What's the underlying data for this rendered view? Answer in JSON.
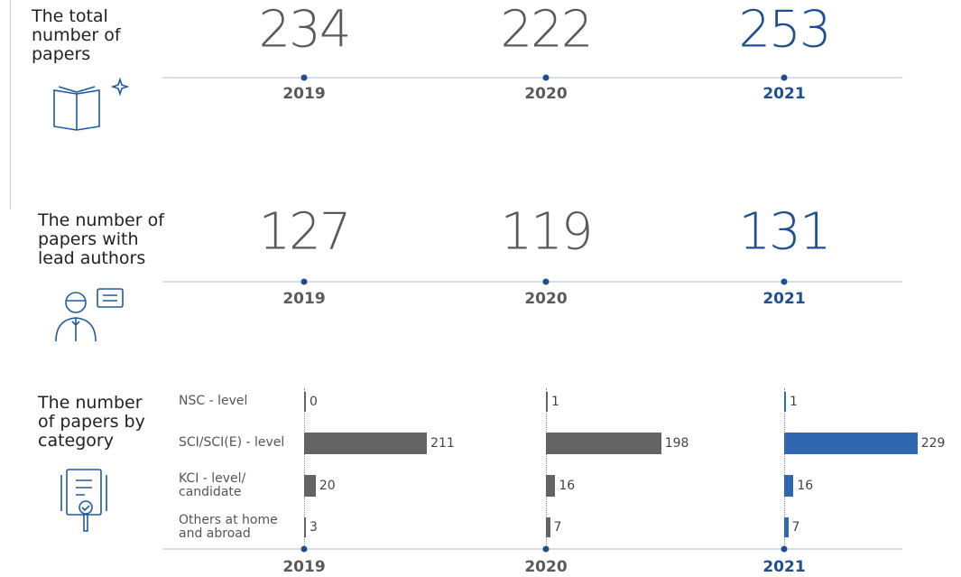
{
  "years": [
    "2019",
    "2020",
    "2021"
  ],
  "color": "#5a5a5a",
  "highlight_color": "#1d4f91",
  "bar_color": "#636363",
  "bar_highlight_color": "#2f68b1",
  "line_color": "#d9dfe8",
  "total_papers": {
    "label": "The total number of papers",
    "values": [
      234,
      222,
      253
    ]
  },
  "lead_authors": {
    "label": "The number of papers with lead authors",
    "values": [
      127,
      119,
      131
    ]
  },
  "by_category": {
    "label": "The number of papers by category",
    "categories": [
      "NSC - level",
      "SCI/SCI(E) - level",
      "KCI - level/ candidate",
      "Others at home and abroad"
    ],
    "values": [
      [
        0,
        211,
        20,
        3
      ],
      [
        1,
        198,
        16,
        7
      ],
      [
        1,
        229,
        16,
        7
      ]
    ]
  }
}
